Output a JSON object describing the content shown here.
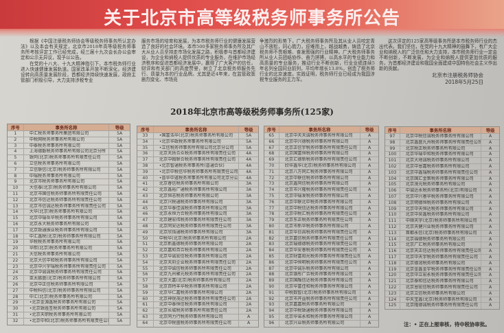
{
  "title": "关于北京市高等级税务师事务所公告",
  "body": {
    "p1": "根据《中国注册税务师协会等级税务师事务所认定办法》以及本会有关规定，北京市2018年高等级税务师事务所考核评定工作已经完成，经三届十九次会长办公会审定和公示无异议，现予以公告。",
    "p2": "在党的十八大、十九大精神指引下，本市税务师行业进入快速健康发展轨道。国家改革开放不断深化，经济建设转向高质量发展阶段，首都经济持续快速发展，政府主管部门积极引导，大力支持涉税专业",
    "p2b": "服务市场的培育和发展，为本市税务师行业的健康发展营造了良好的社会环境。本市500多家税务师事务所及其广大从业人员坚持走市场化发展之路，积极参与首都经济建设，为企业和纳税人提供优质的专业服务，在维护市场经济秩序和促进首都经济发展中，赢得了广大客户的信任，财评和有关部门的高度赞誉，树立了北京税务师服务先行、质量为本的行业品牌。尤其是近4年来，在监管政策剧烈变化、市场竞",
    "p2c": "争激烈的形势下，广大税务师事务所及其从业人员咬定青山不放松，同心勠力，迎难而上，越战越勇，铸造了北京税务师不畏艰难、奋发图强的行业精神。广大税务师事务所从业人员团结协作、奋力拼搏，以高水平的专业能力和高质量的专业服务，推动行业不断创新，行业业绩连续5年名列全国同业前列，平均年增长13.8%，创造了税务师行业的北京速度。实践证明，税务师行业已经成为我国涉税专业服务的主力军。",
    "p3": "这次评定的125家高等级事务所是本市税务师行业的杰出代表。我们坚信，在党的十九大精神的鼓舞下，有广大企业和纳税人的广泛信任和大力支持，本市税务师行业一定会不断创新，不断发展，为企业和纳税人提供更加优质的服务，为首都经济建设和我国全面建成中国特色社会主义作出新的贡献。",
    "org": "北京市注册税务师协会",
    "date": "2018年5月25日"
  },
  "subtitle": "2018年北京市高等级税务师事务所(125家)",
  "table_headers": {
    "no": "序号",
    "name": "事务所名称",
    "grade": "等级"
  },
  "tables": [
    {
      "rows": [
        [
          "1",
          "中汇税务师事务所集团有限公司",
          "5A"
        ],
        [
          "2",
          "中税网税务师事务所有限公司",
          "5A"
        ],
        [
          "3",
          "中泰税务师事务所有限公司",
          "5A"
        ],
        [
          "4",
          "上海德勤税务师事务所有限公司北京分所",
          "5A"
        ],
        [
          "5",
          "致同(北京)税务师事务所有限责任公司",
          "5A"
        ],
        [
          "6",
          "立信税务师事务所有限公司",
          "5A"
        ],
        [
          "7",
          "立信联信(北京)税务师事务所有限公司",
          "5A"
        ],
        [
          "8",
          "中瑞税务师事务所有限公司",
          "5A"
        ],
        [
          "9",
          "北京市税务师事务所有限公司",
          "5A"
        ],
        [
          "10",
          "大信泰(北京)税务师事务所有限公司",
          "5A"
        ],
        [
          "11",
          "北京市国信税务师事务所有限责任公司",
          "5A"
        ],
        [
          "12",
          "北京市信达税务师事务所有限责任公司",
          "5A"
        ],
        [
          "13",
          "北京市信诚达税务师事务所有限责任公司",
          "5A"
        ],
        [
          "14",
          "大华(北京)税务师事务所有限公司",
          "5A"
        ],
        [
          "15",
          "北京中瑞岳华税务师事务所有限公司",
          "5A"
        ],
        [
          "16",
          "北京永大税务师事务所有限公司",
          "5A"
        ],
        [
          "17",
          "北京致通振业税务师事务所有限公司",
          "5A"
        ],
        [
          "18",
          "中汇鑫税(北京)税务师事务所有限公司",
          "5A"
        ],
        [
          "19",
          "华税税务师事务所有限公司",
          "5A"
        ],
        [
          "20",
          "华熙(北京)税务师事务所有限公司",
          "5A"
        ],
        [
          "21",
          "大信税务师事务所有限公司",
          "5A"
        ],
        [
          "22",
          "北京大信中和税务师事务所有限公司",
          "5A"
        ],
        [
          "23",
          "北京中兴宇瑞税务师事务所有限责任公司",
          "5A"
        ],
        [
          "24",
          "北京中诚诚税务师事务所有限责任公司",
          "5A"
        ],
        [
          "25",
          "亚太鹏盛(北京)税务师事务所有限公司",
          "5A"
        ],
        [
          "26",
          "北京中正信税务师事务所有限公司",
          "5A"
        ],
        [
          "27",
          "中税科信(北京)税务师事务所有限公司",
          "5A"
        ],
        [
          "28",
          "中汇(北京)税务师事务所有限公司",
          "5A"
        ],
        [
          "29",
          "•北京金源鑫税务师事务所有限公司",
          "5A"
        ],
        [
          "30",
          "•北京致胜圣税务师事务所有限公司",
          "5A"
        ],
        [
          "31",
          "•北京天职税务师事务所有限公司",
          "5A"
        ],
        [
          "32",
          "•北京中和(北京)税务师事务所有限责任公司",
          "5A"
        ]
      ]
    },
    {
      "rows": [
        [
          "33",
          "•国富浩华(北京)税务师事务所有限公司",
          "5A"
        ],
        [
          "34",
          "•北京华政税务师事务所有限公司",
          "5A"
        ],
        [
          "35",
          "•立信税务师事务所有限公司北京分公司",
          "5A"
        ],
        [
          "36",
          "北京天扬合众税务师事务所有限责任公司",
          "4A"
        ],
        [
          "37",
          "北京中翰联合税务师事务所有限责任公司",
          "4A"
        ],
        [
          "38",
          "•北京智通税务师事务所(普通合伙)",
          "4A"
        ],
        [
          "39",
          "•北京中税信华税务师事务所有限责任公司",
          "4A"
        ],
        [
          "40",
          "•普华中道税务师事务所有限公司北京分公司",
          "4A"
        ],
        [
          "41",
          "北京睿信税务师事务所有限公司",
          "3A"
        ],
        [
          "42",
          "北京鑫裕广通税务师事务所有限公司",
          "3A"
        ],
        [
          "43",
          "北京恒志税务师事务所有限公司",
          "3A"
        ],
        [
          "44",
          "北京兴税通税务师事务所有限公司",
          "3A"
        ],
        [
          "45",
          "北京华泰佳诚税务师事务所有限公司",
          "3A"
        ],
        [
          "46",
          "北京永恒力合税务师事务所有限公司",
          "3A"
        ],
        [
          "47",
          "北京建宏伟税务师事务所有限责任公司",
          "3A"
        ],
        [
          "48",
          "北京同安达税务师事务所有限责任公司",
          "3A"
        ],
        [
          "49",
          "北京欣指通税务师事务所有限公司",
          "3A"
        ],
        [
          "50",
          "中税华(北京)税务师事务所有限公司",
          "2A"
        ],
        [
          "51",
          "北京新鑫德税务师事务所有限公司",
          "2A"
        ],
        [
          "52",
          "北京嘉和百合税务师事务所有限公司",
          "2A"
        ],
        [
          "53",
          "北京华诚宏信税务师事务所有限公司",
          "2A"
        ],
        [
          "54",
          "北京天府企业税务师事务所有限责任公司",
          "2A"
        ],
        [
          "55",
          "北京中诚信税务师事务所有限责任公司",
          "2A"
        ],
        [
          "56",
          "北京九州聚元税务师事务所有限责任公司",
          "2A"
        ],
        [
          "57",
          "北京大嘉(北京)税务师事务所有限公司",
          "2A"
        ],
        [
          "58",
          "北京百特丰华税务师事务所有限公司",
          "2A"
        ],
        [
          "59",
          "北京华仁嘉税务师事务所有限公司",
          "2A"
        ],
        [
          "60",
          "北京神锐茂达税务师事务所有限责任公司",
          "2A"
        ],
        [
          "61",
          "北京中泰恒信税务师事务所有限公司",
          "2A"
        ],
        [
          "62",
          "北京长城税务师事务所有限责任公司",
          "2A"
        ],
        [
          "63",
          "北京同力行税务师事务所有限公司",
          "A"
        ],
        [
          "64",
          "北京中税盛税务师事务所有限责任公司",
          "A"
        ]
      ]
    },
    {
      "rows": [
        [
          "65",
          "北京中天天诚税务师事务所有限公司",
          "A"
        ],
        [
          "66",
          "北京中兴德税务师事务所有限公司",
          "A"
        ],
        [
          "67",
          "北京正信宇税务师事务所有限责任公司",
          "A"
        ],
        [
          "68",
          "北京国富恒税务师事务所有限公司",
          "A"
        ],
        [
          "69",
          "北京汇德新税务师事务所有限责任公司",
          "A"
        ],
        [
          "70",
          "欣华鑫华(北京)税务师事务所有限公司",
          "A"
        ],
        [
          "71",
          "北京八方同汇税务师事务所有限公司",
          "A"
        ],
        [
          "72",
          "北京中联信税务师事务所有限公司",
          "A"
        ],
        [
          "73",
          "北京鑫同信税务师事务所有限公司",
          "A"
        ],
        [
          "74",
          "北京市兴隆税务师事务所有限责任公司",
          "A"
        ],
        [
          "75",
          "北京中瑞发税务师事务所有限公司",
          "A"
        ],
        [
          "76",
          "北京中联北中税务师事务所有限公司",
          "A"
        ],
        [
          "77",
          "北京中税信达税务师事务所有限公司",
          "A"
        ],
        [
          "78",
          "北京中税汇税务师事务所有限责任公司",
          "A"
        ],
        [
          "79",
          "北京东正税务师事务所有限责任公司",
          "A"
        ],
        [
          "80",
          "北京市新华税务师事务所有限公司",
          "A"
        ],
        [
          "81",
          "北京华日昌税务师事务所有限责任公司",
          "A"
        ],
        [
          "82",
          "北京嘉信税务师事务所有限责任公司",
          "A"
        ],
        [
          "83",
          "北京瑞德德税务师事务所有限责任公司",
          "A"
        ],
        [
          "84",
          "北京华安睿税务师事务所有限责任公司",
          "A"
        ],
        [
          "85",
          "北京财富阳光税务师事务所有限责任公司",
          "A"
        ],
        [
          "86",
          "北京中恒明税务师事务所有限责任公司",
          "A"
        ],
        [
          "87",
          "北京中诚乐税务师事务所有限公司",
          "A"
        ],
        [
          "88",
          "北京银彤广合税务师事务所有限公司",
          "A"
        ],
        [
          "89",
          "北京国融信达税务师事务所有限公司",
          "A"
        ],
        [
          "90",
          "北京华富佳和税务师事务所有限公司",
          "A"
        ],
        [
          "91",
          "中税数智(北京)税务师事务所有限公司",
          "A"
        ],
        [
          "92",
          "北京市开益税务师事务所有限责任公司",
          "A"
        ],
        [
          "93",
          "北京嘉嘉税务师事务所有限公司",
          "A"
        ],
        [
          "94",
          "北京中税致通税务师事务所有限公司",
          "A"
        ],
        [
          "95",
          "北京华诺永和税务师事务所有限公司",
          "A"
        ],
        [
          "96",
          "北京兴业税务师事务所有限公司",
          "A"
        ]
      ]
    },
    {
      "rows": [
        [
          "97",
          "北京中税信诚税务师事务所有限公司",
          "A"
        ],
        [
          "98",
          "北京鑫盛九州税务师事务所有限责任公司",
          "A"
        ],
        [
          "99",
          "北京税正税务师事务所有限公司",
          "A"
        ],
        [
          "100",
          "北京华瑞中和税务师事务所有限公司",
          "A"
        ],
        [
          "101",
          "北京大地诚税务师事务所有限公司",
          "A"
        ],
        [
          "102",
          "北京中恩嘉税务师事务所有限公司",
          "A"
        ],
        [
          "103",
          "北京中鑫瑞税务师事务所有限责任公司",
          "A"
        ],
        [
          "104",
          "北京国汇金策税务师事务所有限公司",
          "A"
        ],
        [
          "105",
          "北京茂元税务师事务所有限公司",
          "A"
        ],
        [
          "106",
          "中诚达永税务师事务所(北京)有限公司",
          "A"
        ],
        [
          "107",
          "北京中兴睿华税务师事务所有限公司",
          "A"
        ],
        [
          "108",
          "北京明德恒税务师事务所有限公司",
          "A"
        ],
        [
          "109",
          "北京中天恒达税务师事务所有限公司",
          "A"
        ],
        [
          "110",
          "北京中昊鑫税务师事务所有限公司",
          "A"
        ],
        [
          "111",
          "中顺天宇(北京)税务师事务所有限公司",
          "A"
        ],
        [
          "112",
          "北京天健兴业税务师事务所有限公司",
          "A"
        ],
        [
          "113",
          "首都永信(北京)税务师事务所有限公司",
          "A"
        ],
        [
          "114",
          "北京福德税务师事务所有限公司",
          "A"
        ],
        [
          "115",
          "北京广汇税务师事务所有限公司",
          "A"
        ],
        [
          "116",
          "北京天正信达税务师事务所有限责任公司",
          "A"
        ],
        [
          "117",
          "北京中天宇税务师事务所有限责任公司",
          "A"
        ],
        [
          "118",
          "北京德润税务师事务所有限公司",
          "A"
        ],
        [
          "119",
          "北京金鑫金宇税务师事务所有限责任公司",
          "A"
        ],
        [
          "120",
          "北京中立宏永税务师事务所有限责任公司",
          "A"
        ],
        [
          "121",
          "北京泰和信达税务师事务所有限公司",
          "A"
        ],
        [
          "122",
          "北京恩宏信税务师事务所有限责任公司",
          "A"
        ],
        [
          "123",
          "北京立信税务师事务所有限公司",
          "A"
        ],
        [
          "124",
          "中天宝鑫(北京)税务师事务所有限公司",
          "A"
        ],
        [
          "125",
          "北京隆德诚税务师事务所有限责任公司",
          "A"
        ]
      ]
    }
  ],
  "note": "注：• 正在上报审核，待中税协审批。",
  "colors": {
    "banner": "#d9403f",
    "table_header": "#d5ad93",
    "paper": "#cfcdc8"
  }
}
